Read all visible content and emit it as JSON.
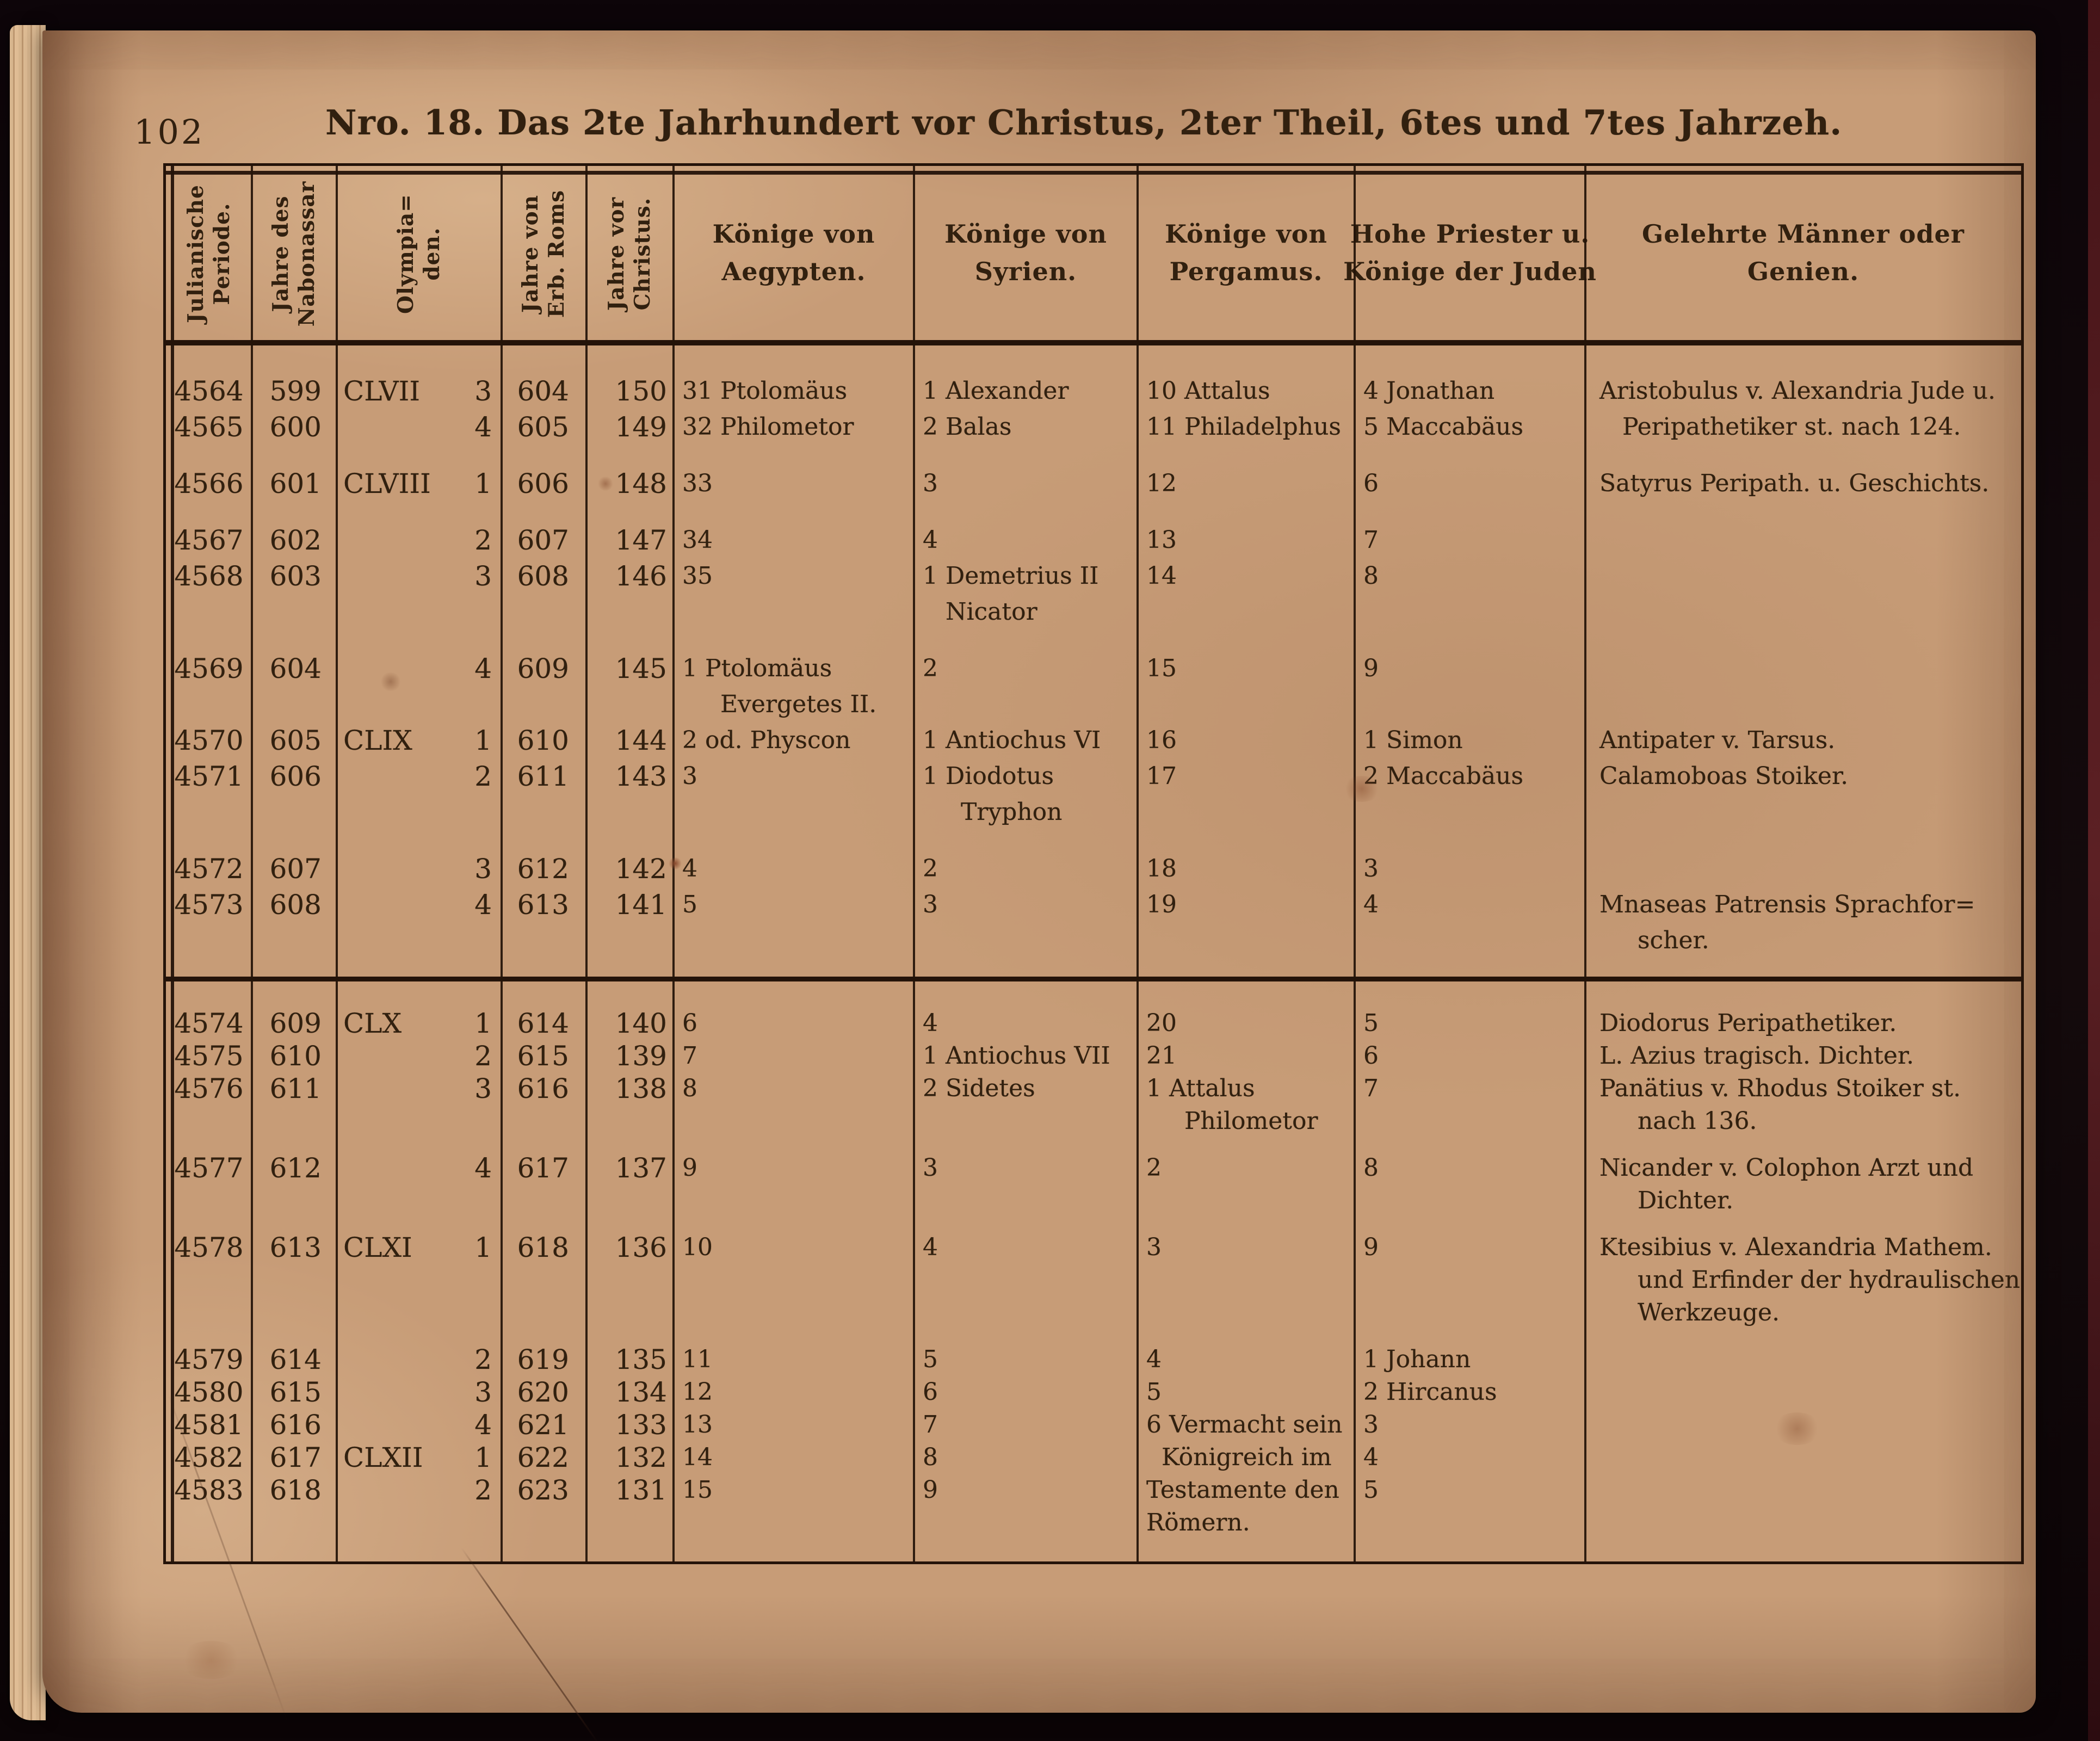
{
  "page": {
    "page_number": "102",
    "title": "Nro. 18. Das 2te Jahrhundert vor Christus, 2ter Theil, 6tes und 7tes Jahrzeh."
  },
  "colors": {
    "paper": "#c79c77",
    "ink": "#31200f",
    "rule": "#241309",
    "background": "#12080b"
  },
  "table": {
    "narrow_headers": [
      "Julianische\nPeriode.",
      "Jahre des\nNabonassar",
      "Olympia=\nden.",
      "Jahre von\nErb. Roms",
      "Jahre vor\nChristus."
    ],
    "wide_headers": [
      "Könige von\nAegypten.",
      "Könige von\nSyrien.",
      "Könige von\nPergamus.",
      "Hohe Priester u.\nKönige der Juden",
      "Gelehrte Männer oder\nGenien."
    ],
    "column_names": [
      "Julianische Periode",
      "Jahre des Nabonassar",
      "Olympiaden",
      "Jahre von Erb. Roms",
      "Jahre vor Christus",
      "Könige von Aegypten",
      "Könige von Syrien",
      "Könige von Pergamus",
      "Hohe Priester u. Könige der Juden",
      "Gelehrte Männer oder Genien"
    ],
    "blocks": [
      {
        "rows": [
          {
            "jp": "4564",
            "nab": "599",
            "oly": "CLVII",
            "oly_n": "3",
            "rom": "604",
            "vc": "150",
            "aeg": "31 Ptolomäus",
            "syr": "1 Alexander",
            "per": "10 Attalus",
            "jud": "4 Jonathan",
            "gel": "Aristobulus v. Alexandria Jude u."
          },
          {
            "jp": "4565",
            "nab": "600",
            "oly": "",
            "oly_n": "4",
            "rom": "605",
            "vc": "149",
            "aeg": "32 Philometor",
            "syr": "2 Balas",
            "per": "11 Philadelphus",
            "jud": "5 Maccabäus",
            "gel": "   Peripathetiker st. nach 124."
          },
          {
            "gap": true,
            "jp": "4566",
            "nab": "601",
            "oly": "CLVIII",
            "oly_n": "1",
            "rom": "606",
            "vc": "148",
            "aeg": "33",
            "syr": "3",
            "per": "12",
            "jud": "6",
            "gel": "Satyrus Peripath. u. Geschichts."
          },
          {
            "gap": true,
            "jp": "4567",
            "nab": "602",
            "oly": "",
            "oly_n": "2",
            "rom": "607",
            "vc": "147",
            "aeg": "34",
            "syr": "4",
            "per": "13",
            "jud": "7",
            "gel": ""
          },
          {
            "jp": "4568",
            "nab": "603",
            "oly": "",
            "oly_n": "3",
            "rom": "608",
            "vc": "146",
            "aeg": "35",
            "syr": "1 Demetrius II\n   Nicator",
            "per": "14",
            "jud": "8",
            "gel": ""
          },
          {
            "gap": true,
            "jp": "4569",
            "nab": "604",
            "oly": "",
            "oly_n": "4",
            "rom": "609",
            "vc": "145",
            "aeg": "1 Ptolomäus\n     Evergetes II.",
            "syr": "2",
            "per": "15",
            "jud": "9",
            "gel": ""
          },
          {
            "jp": "4570",
            "nab": "605",
            "oly": "CLIX",
            "oly_n": "1",
            "rom": "610",
            "vc": "144",
            "aeg": "2 od. Physcon",
            "syr": "1 Antiochus VI",
            "per": "16",
            "jud": "1 Simon",
            "gel": "Antipater v. Tarsus."
          },
          {
            "jp": "4571",
            "nab": "606",
            "oly": "",
            "oly_n": "2",
            "rom": "611",
            "vc": "143",
            "aeg": "3",
            "syr": "1 Diodotus\n     Tryphon",
            "per": "17",
            "jud": "2 Maccabäus",
            "gel": "Calamoboas Stoiker."
          },
          {
            "gap": true,
            "jp": "4572",
            "nab": "607",
            "oly": "",
            "oly_n": "3",
            "rom": "612",
            "vc": "142",
            "aeg": "4",
            "syr": "2",
            "per": "18",
            "jud": "3",
            "gel": ""
          },
          {
            "jp": "4573",
            "nab": "608",
            "oly": "",
            "oly_n": "4",
            "rom": "613",
            "vc": "141",
            "aeg": "5",
            "syr": "3",
            "per": "19",
            "jud": "4",
            "gel": "Mnaseas Patrensis Sprachfor=\n     scher."
          }
        ]
      },
      {
        "rows": [
          {
            "jp": "4574",
            "nab": "609",
            "oly": "CLX",
            "oly_n": "1",
            "rom": "614",
            "vc": "140",
            "aeg": "6",
            "syr": "4",
            "per": "20",
            "jud": "5",
            "gel": "Diodorus Peripathetiker."
          },
          {
            "jp": "4575",
            "nab": "610",
            "oly": "",
            "oly_n": "2",
            "rom": "615",
            "vc": "139",
            "aeg": "7",
            "syr": "1 Antiochus VII",
            "per": "21",
            "jud": "6",
            "gel": "L. Azius tragisch. Dichter."
          },
          {
            "jp": "4576",
            "nab": "611",
            "oly": "",
            "oly_n": "3",
            "rom": "616",
            "vc": "138",
            "aeg": "8",
            "syr": "2 Sidetes",
            "per": "1 Attalus\n     Philometor",
            "jud": "7",
            "gel": "Panätius v. Rhodus Stoiker st.\n     nach 136."
          },
          {
            "gap": true,
            "jp": "4577",
            "nab": "612",
            "oly": "",
            "oly_n": "4",
            "rom": "617",
            "vc": "137",
            "aeg": "9",
            "syr": "3",
            "per": "2",
            "jud": "8",
            "gel": "Nicander v. Colophon Arzt und\n     Dichter."
          },
          {
            "gap": true,
            "jp": "4578",
            "nab": "613",
            "oly": "CLXI",
            "oly_n": "1",
            "rom": "618",
            "vc": "136",
            "aeg": "10",
            "syr": "4",
            "per": "3",
            "jud": "9",
            "gel": "Ktesibius v. Alexandria Mathem.\n     und Erfinder der hydraulischen\n     Werkzeuge."
          },
          {
            "gap": true,
            "jp": "4579",
            "nab": "614",
            "oly": "",
            "oly_n": "2",
            "rom": "619",
            "vc": "135",
            "aeg": "11",
            "syr": "5",
            "per": "4",
            "jud": "1 Johann",
            "gel": ""
          },
          {
            "jp": "4580",
            "nab": "615",
            "oly": "",
            "oly_n": "3",
            "rom": "620",
            "vc": "134",
            "aeg": "12",
            "syr": "6",
            "per": "5",
            "jud": "2 Hircanus",
            "gel": ""
          },
          {
            "jp": "4581",
            "nab": "616",
            "oly": "",
            "oly_n": "4",
            "rom": "621",
            "vc": "133",
            "aeg": "13",
            "syr": "7",
            "per": "6 Vermacht sein",
            "jud": "3",
            "gel": ""
          },
          {
            "jp": "4582",
            "nab": "617",
            "oly": "CLXII",
            "oly_n": "1",
            "rom": "622",
            "vc": "132",
            "aeg": "14",
            "syr": "8",
            "per": "  Königreich im",
            "jud": "4",
            "gel": ""
          },
          {
            "jp": "4583",
            "nab": "618",
            "oly": "",
            "oly_n": "2",
            "rom": "623",
            "vc": "131",
            "aeg": "15",
            "syr": "9",
            "per": "Testamente den",
            "jud": "5",
            "gel": ""
          },
          {
            "jp": "",
            "nab": "",
            "oly": "",
            "oly_n": "",
            "rom": "",
            "vc": "",
            "aeg": "",
            "syr": "",
            "per": "Römern.",
            "jud": "",
            "gel": ""
          }
        ]
      }
    ]
  }
}
